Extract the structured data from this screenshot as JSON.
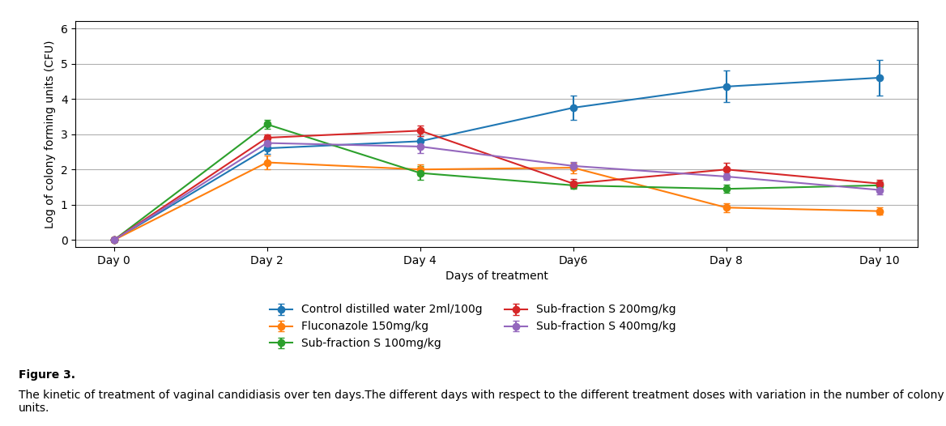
{
  "chart_data": {
    "type": "line",
    "xlabel": "Days of treatment",
    "ylabel": "Log of colony forming units (CFU)",
    "x": [
      0,
      2,
      4,
      6,
      8,
      10
    ],
    "xlim": [
      -0.5,
      10.5
    ],
    "xticks": [
      {
        "value": 0,
        "label": "Day 0"
      },
      {
        "value": 2,
        "label": "Day 2"
      },
      {
        "value": 4,
        "label": "Day 4"
      },
      {
        "value": 6,
        "label": "Day6"
      },
      {
        "value": 8,
        "label": "Day 8"
      },
      {
        "value": 10,
        "label": "Day 10"
      }
    ],
    "ylim": [
      -0.2,
      6.2
    ],
    "yticks": [
      0,
      1,
      2,
      3,
      4,
      5,
      6
    ],
    "grid": "y",
    "legend": "bottom",
    "marker": "o",
    "series": [
      {
        "name": "Control distilled water 2ml/100g",
        "values": [
          0.0,
          2.6,
          2.8,
          3.75,
          4.35,
          4.6
        ],
        "errors": [
          0.0,
          0.15,
          0.15,
          0.35,
          0.45,
          0.5
        ]
      },
      {
        "name": "Fluconazole 150mg/kg",
        "values": [
          0.0,
          2.2,
          2.0,
          2.05,
          0.92,
          0.82
        ],
        "errors": [
          0.0,
          0.2,
          0.15,
          0.15,
          0.12,
          0.1
        ]
      },
      {
        "name": "Sub-fraction S 100mg/kg",
        "values": [
          0.0,
          3.28,
          1.9,
          1.55,
          1.45,
          1.55
        ],
        "errors": [
          0.0,
          0.12,
          0.2,
          0.1,
          0.12,
          0.1
        ]
      },
      {
        "name": "Sub-fraction S 200mg/kg",
        "values": [
          0.0,
          2.9,
          3.1,
          1.6,
          2.0,
          1.6
        ],
        "errors": [
          0.0,
          0.1,
          0.15,
          0.12,
          0.2,
          0.1
        ]
      },
      {
        "name": "Sub-fraction S 400mg/kg",
        "values": [
          0.0,
          2.75,
          2.65,
          2.1,
          1.8,
          1.42
        ],
        "errors": [
          0.0,
          0.1,
          0.18,
          0.12,
          0.1,
          0.12
        ]
      }
    ],
    "annotations": [
      "Figure 3.",
      "The kinetic of treatment of vaginal candidiasis over ten days.The different days with respect to the different treatment doses with variation in the number of colony units."
    ]
  }
}
